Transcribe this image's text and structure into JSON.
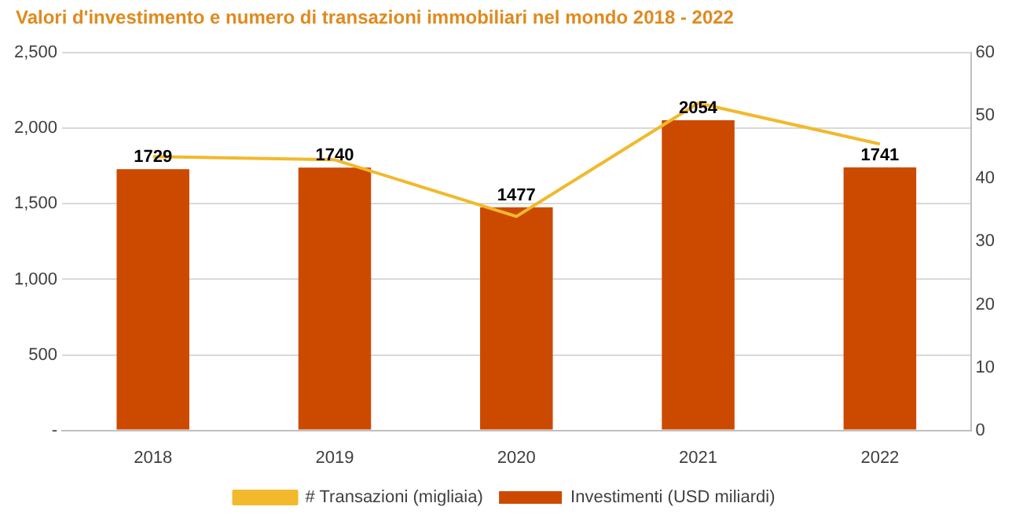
{
  "chart_data": {
    "type": "bar",
    "title": "Valori d'investimento e numero di transazioni immobiliari nel mondo 2018 - 2022",
    "categories": [
      "2018",
      "2019",
      "2020",
      "2021",
      "2022"
    ],
    "series": [
      {
        "name": "Investimenti (USD miliardi)",
        "color": "#cc4a00",
        "values": [
          1729,
          1740,
          1477,
          2054,
          1741
        ],
        "value_labels": [
          "1729",
          "1740",
          "1477",
          "2054",
          "1741"
        ]
      },
      {
        "name": "# Transazioni (migliaia)",
        "type": "line",
        "axis": "y2",
        "color": "#f2b92c",
        "values": [
          43.5,
          43,
          34,
          52,
          45.5
        ]
      }
    ],
    "ylim": [
      0,
      2500
    ],
    "yticks": [
      {
        "value": 0,
        "label": "-"
      },
      {
        "value": 500,
        "label": "500"
      },
      {
        "value": 1000,
        "label": "1,000"
      },
      {
        "value": 1500,
        "label": "1,500"
      },
      {
        "value": 2000,
        "label": "2,000"
      },
      {
        "value": 2500,
        "label": "2,500"
      }
    ],
    "y2lim": [
      0,
      60
    ],
    "y2ticks": [
      0,
      10,
      20,
      30,
      40,
      50,
      60
    ],
    "grid": "y",
    "legend": "bottom",
    "marker": "none"
  }
}
